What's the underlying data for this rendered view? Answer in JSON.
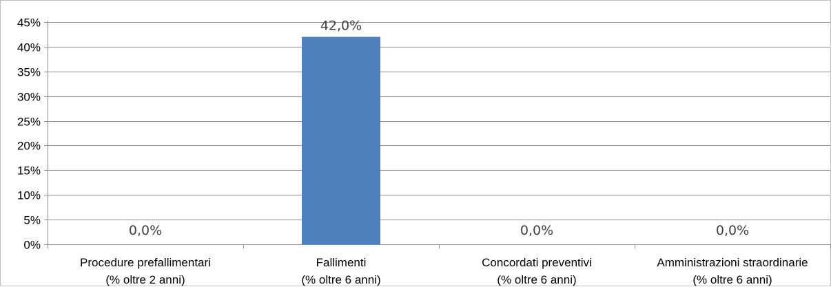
{
  "chart_data": {
    "type": "bar",
    "title": "",
    "xlabel": "",
    "ylabel": "",
    "categories": [
      [
        "Procedure prefallimentari",
        "(% oltre 2 anni)"
      ],
      [
        "Fallimenti",
        "(% oltre 6 anni)"
      ],
      [
        "Concordati preventivi",
        "(% oltre 6 anni)"
      ],
      [
        "Amministrazioni straordinarie",
        "(% oltre 6 anni)"
      ]
    ],
    "values": [
      0.0,
      42.0,
      0.0,
      0.0
    ],
    "data_labels": [
      "0,0%",
      "42,0%",
      "0,0%",
      "0,0%"
    ],
    "ylim": [
      0,
      45
    ],
    "y_ticks": [
      0,
      5,
      10,
      15,
      20,
      25,
      30,
      35,
      40,
      45
    ],
    "y_tick_labels": [
      "0%",
      "5%",
      "10%",
      "15%",
      "20%",
      "25%",
      "30%",
      "35%",
      "40%",
      "45%"
    ],
    "grid": true,
    "legend": "none",
    "bar_color": "#4f81bd",
    "grid_color": "#8c8c8c"
  }
}
